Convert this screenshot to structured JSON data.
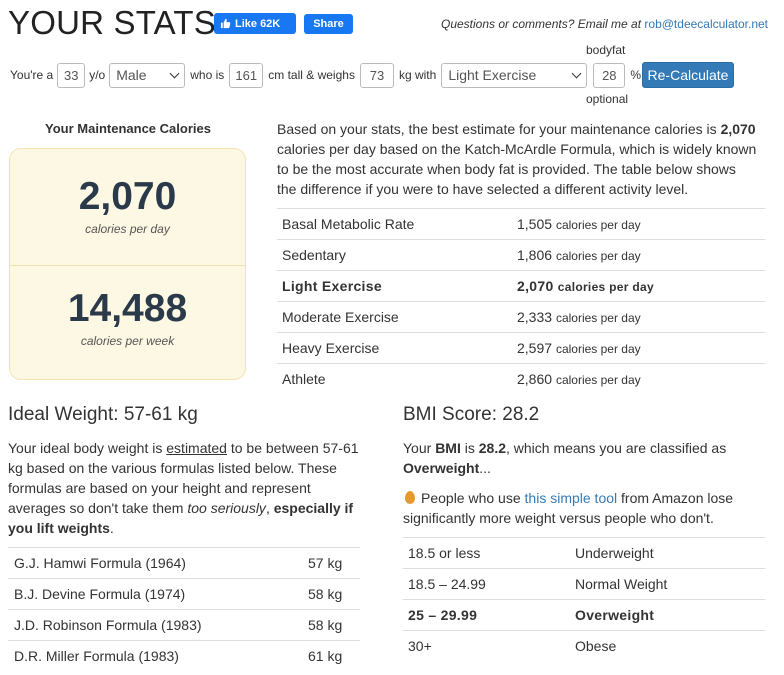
{
  "header": {
    "title": "YOUR STATS",
    "fb_like_label": "Like 62K",
    "fb_share_label": "Share",
    "contact_text": "Questions or comments? Email me at ",
    "contact_email": "rob@tdeecalculator.net"
  },
  "form": {
    "youre_a": "You're a",
    "age": "33",
    "yo": "y/o",
    "gender": "Male",
    "who_is": "who is",
    "height": "161",
    "cm_tall": "cm tall & weighs",
    "weight": "73",
    "kg_with": "kg with",
    "activity": "Light Exercise",
    "bodyfat_label": "bodyfat",
    "bodyfat": "28",
    "percent": "%",
    "optional_label": "optional",
    "recalc_label": "Re-Calculate"
  },
  "maintenance": {
    "title": "Your Maintenance Calories",
    "per_day_value": "2,070",
    "per_day_label": "calories per day",
    "per_week_value": "14,488",
    "per_week_label": "calories per week"
  },
  "description": {
    "p1": "Based on your stats, the best estimate for your maintenance calories is ",
    "bold_value": "2,070",
    "p2": " calories per day based on the Katch-McArdle Formula, which is widely known to be the most accurate when body fat is provided. The table below shows the difference if you were to have selected a different activity level."
  },
  "activity_table": {
    "unit": "calories per day",
    "rows": [
      {
        "label": "Basal Metabolic Rate",
        "value": "1,505"
      },
      {
        "label": "Sedentary",
        "value": "1,806"
      },
      {
        "label": "Light Exercise",
        "value": "2,070"
      },
      {
        "label": "Moderate Exercise",
        "value": "2,333"
      },
      {
        "label": "Heavy Exercise",
        "value": "2,597"
      },
      {
        "label": "Athlete",
        "value": "2,860"
      }
    ]
  },
  "ideal": {
    "title": "Ideal Weight: 57-61 kg",
    "t1": "Your ideal body weight is ",
    "t_underline": "estimated",
    "t2": " to be between 57-61 kg based on the various formulas listed below. These formulas are based on your height and represent averages so don't take them ",
    "t_italic": "too seriously",
    "t3": ", ",
    "t_bold": "especially if you lift weights",
    "t4": ".",
    "rows": [
      {
        "formula": "G.J. Hamwi Formula (1964)",
        "kg": "57 kg"
      },
      {
        "formula": "B.J. Devine Formula (1974)",
        "kg": "58 kg"
      },
      {
        "formula": "J.D. Robinson Formula (1983)",
        "kg": "58 kg"
      },
      {
        "formula": "D.R. Miller Formula (1983)",
        "kg": "61 kg"
      }
    ]
  },
  "bmi": {
    "title": "BMI Score: 28.2",
    "b1": "Your ",
    "b_bmi": "BMI",
    "b2": " is ",
    "b_val": "28.2",
    "b3": ", which means you are classified as ",
    "b_class": "Overweight",
    "b4": "...",
    "tool1": "People who use ",
    "tool_link": "this simple tool",
    "tool2": " from Amazon lose significantly more weight versus people who don't.",
    "rows": [
      {
        "range": "18.5 or less",
        "class": "Underweight"
      },
      {
        "range": "18.5 – 24.99",
        "class": "Normal Weight"
      },
      {
        "range": "25 – 29.99",
        "class": "Overweight"
      },
      {
        "range": "30+",
        "class": "Obese"
      }
    ]
  },
  "colors": {
    "accent": "#337ab7",
    "facebook": "#1877f2",
    "calorie_box_bg": "#fcf8e3"
  }
}
